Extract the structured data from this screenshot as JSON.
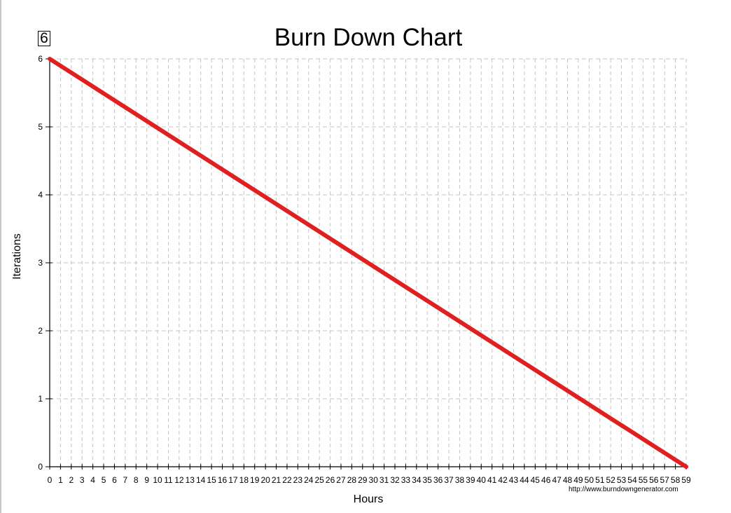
{
  "badge": {
    "label": "6"
  },
  "chart_data": {
    "type": "line",
    "title": "Burn Down Chart",
    "xlabel": "Hours",
    "ylabel": "Iterations",
    "xlim": [
      0,
      59
    ],
    "ylim": [
      0,
      6
    ],
    "x_ticks": [
      0,
      1,
      2,
      3,
      4,
      5,
      6,
      7,
      8,
      9,
      10,
      11,
      12,
      13,
      14,
      15,
      16,
      17,
      18,
      19,
      20,
      21,
      22,
      23,
      24,
      25,
      26,
      27,
      28,
      29,
      30,
      31,
      32,
      33,
      34,
      35,
      36,
      37,
      38,
      39,
      40,
      41,
      42,
      43,
      44,
      45,
      46,
      47,
      48,
      49,
      50,
      51,
      52,
      53,
      54,
      55,
      56,
      57,
      58,
      59
    ],
    "y_ticks": [
      0,
      1,
      2,
      3,
      4,
      5,
      6
    ],
    "grid": true,
    "series": [
      {
        "x": [
          0,
          59
        ],
        "y": [
          6,
          0
        ],
        "color": "#e02020"
      }
    ]
  },
  "footer": {
    "credit": "http://www.burndowngenerator.com"
  }
}
